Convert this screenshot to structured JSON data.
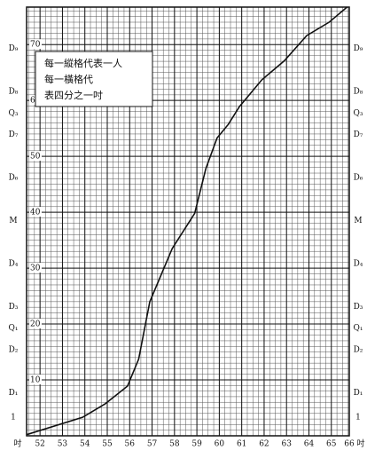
{
  "chart_data": {
    "type": "line",
    "legend_lines": [
      "每一縱格代表一人",
      "每一橫格代",
      "表四分之一吋"
    ],
    "x_label": "吋",
    "x": [
      51.4,
      53.9,
      54.9,
      55.9,
      56.4,
      56.9,
      57.9,
      58.9,
      59.4,
      59.9,
      60.4,
      60.9,
      61.9,
      62.9,
      63.9,
      64.9,
      65.7
    ],
    "series": [
      {
        "color": "#111111",
        "values": [
          0.2,
          3.3,
          5.7,
          8.9,
          13.7,
          24.0,
          33.5,
          39.8,
          47.8,
          53.3,
          55.7,
          58.9,
          63.7,
          67.1,
          71.6,
          74.0,
          76.7
        ]
      }
    ],
    "xlim": [
      51.4,
      65.8
    ],
    "ylim": [
      0,
      76.7
    ],
    "xticks": [
      52,
      53,
      54,
      55,
      56,
      57,
      58,
      59,
      60,
      61,
      62,
      63,
      64,
      65,
      66
    ],
    "yticks": [
      10,
      20,
      30,
      40,
      50,
      60,
      70
    ],
    "grid": {
      "x_step": 0.25,
      "y_step": 1
    },
    "decile_marks": [
      {
        "label": "D₉",
        "value": 69.3
      },
      {
        "label": "D₈",
        "value": 61.6
      },
      {
        "label": "Q₃",
        "value": 57.7
      },
      {
        "label": "D₇",
        "value": 53.9
      },
      {
        "label": "D₆",
        "value": 46.2
      },
      {
        "label": "M",
        "value": 38.5
      },
      {
        "label": "D₄",
        "value": 30.8
      },
      {
        "label": "D₃",
        "value": 23.1
      },
      {
        "label": "Q₁",
        "value": 19.3
      },
      {
        "label": "D₂",
        "value": 15.4
      },
      {
        "label": "D₁",
        "value": 7.7
      },
      {
        "label": "1",
        "value": 3.3
      }
    ]
  }
}
